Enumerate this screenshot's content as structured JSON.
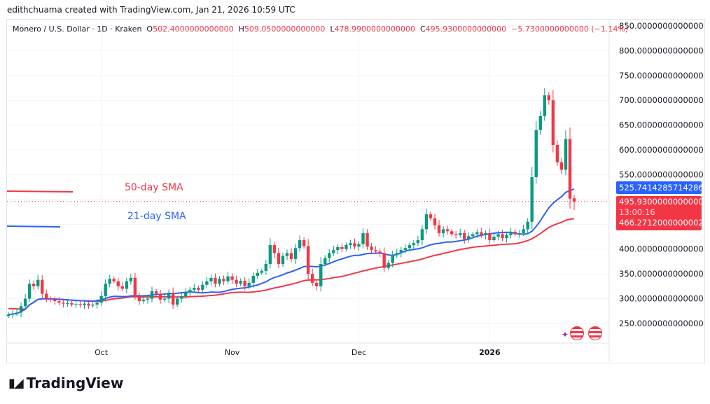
{
  "credit": "edithchuama created with TradingView.com, Jan 21, 2026 10:59 UTC",
  "legend": {
    "symbol": "Monero / U.S. Dollar · 1D · Kraken",
    "open_label": "O",
    "open": "502.4000000000000",
    "high_label": "H",
    "high": "509.0500000000000",
    "low_label": "L",
    "low": "478.9900000000000",
    "close_label": "C",
    "close": "495.9300000000000",
    "change": "−5.7300000000000 (−1.14%)"
  },
  "annotations": {
    "sma50": "50-day SMA",
    "sma21": "21-day SMA"
  },
  "price_axis": [
    "850.0000000000000",
    "800.0000000000000",
    "750.0000000000000",
    "700.0000000000000",
    "650.0000000000000",
    "600.0000000000000",
    "550.0000000000000",
    "400.0000000000000",
    "350.0000000000000",
    "300.0000000000000",
    "250.0000000000000"
  ],
  "price_axis_values": [
    850,
    800,
    750,
    700,
    650,
    600,
    550,
    400,
    350,
    300,
    250
  ],
  "time_axis": [
    "Oct",
    "Nov",
    "Dec",
    "2026"
  ],
  "badges": {
    "sma21_value": "525.7414285714286",
    "last_price": "495.9300000000000",
    "countdown": "13:00:16",
    "sma50_value": "466.2712000000002"
  },
  "colors": {
    "up": "#089981",
    "down": "#f23645",
    "sma21": "#2962ff",
    "sma50": "#f23645"
  },
  "brand": "TradingView",
  "chart_data": {
    "type": "candlestick",
    "x_start": "2025-09-09",
    "x_end": "2026-01-21",
    "ylim": [
      220,
      860
    ],
    "closes": [
      268,
      270,
      272,
      285,
      300,
      330,
      325,
      338,
      310,
      300,
      298,
      295,
      292,
      290,
      291,
      288,
      289,
      287,
      290,
      286,
      288,
      292,
      305,
      330,
      340,
      335,
      325,
      320,
      335,
      342,
      305,
      295,
      298,
      300,
      315,
      310,
      298,
      300,
      312,
      288,
      300,
      305,
      312,
      318,
      322,
      318,
      328,
      335,
      342,
      330,
      340,
      335,
      345,
      338,
      330,
      336,
      325,
      332,
      346,
      352,
      356,
      370,
      408,
      392,
      370,
      386,
      392,
      380,
      402,
      418,
      406,
      350,
      332,
      325,
      370,
      382,
      392,
      398,
      404,
      400,
      408,
      412,
      405,
      410,
      432,
      405,
      398,
      395,
      392,
      362,
      372,
      388,
      392,
      398,
      402,
      408,
      412,
      418,
      440,
      470,
      462,
      448,
      432,
      440,
      436,
      430,
      428,
      432,
      420,
      426,
      430,
      434,
      428,
      432,
      418,
      425,
      430,
      422,
      428,
      435,
      430,
      432,
      440,
      455,
      545,
      640,
      668,
      710,
      700,
      610,
      575,
      560,
      622,
      501.66,
      495.93
    ],
    "last": {
      "open": 502.4,
      "high": 509.05,
      "low": 478.99,
      "close": 495.93
    },
    "series": [
      {
        "name": "21-day SMA",
        "last": 525.7414285714286
      },
      {
        "name": "50-day SMA",
        "last": 466.2712000000002
      }
    ]
  }
}
